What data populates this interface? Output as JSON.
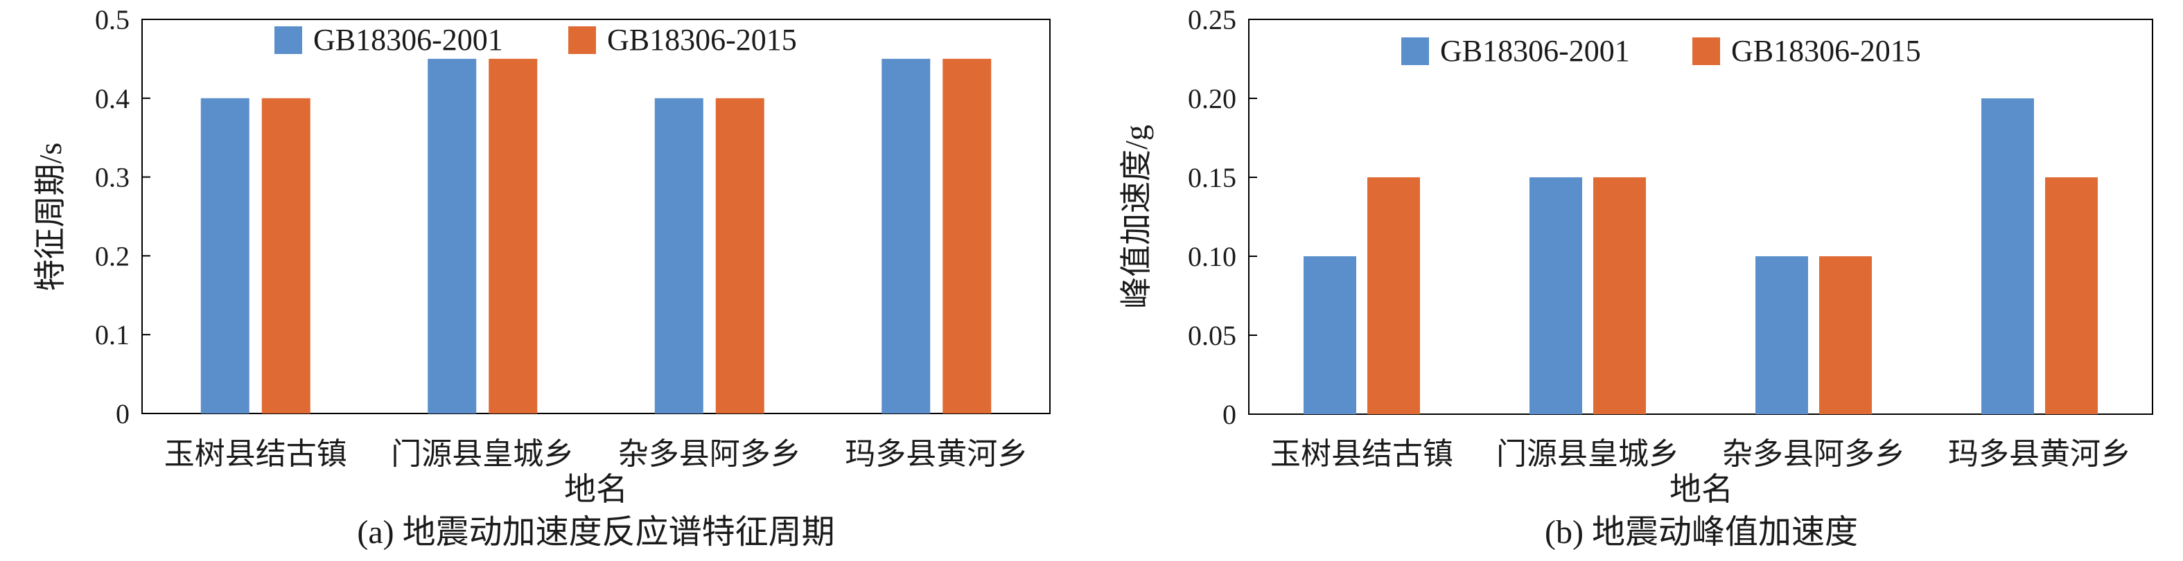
{
  "chart_data": [
    {
      "type": "bar",
      "categories": [
        "玉树县结古镇",
        "门源县皇城乡",
        "杂多县阿多乡",
        "玛多县黄河乡"
      ],
      "series": [
        {
          "name": "GB18306-2001",
          "values": [
            0.4,
            0.45,
            0.4,
            0.45
          ],
          "color": "#5B8FCC"
        },
        {
          "name": "GB18306-2015",
          "values": [
            0.4,
            0.45,
            0.4,
            0.45
          ],
          "color": "#E06A33"
        }
      ],
      "xlabel": "地名",
      "ylabel": "特征周期/s",
      "ylim": [
        0,
        0.5
      ],
      "yticks": [
        "0",
        "0.1",
        "0.2",
        "0.3",
        "0.4",
        "0.5"
      ],
      "caption": "(a) 地震动加速度反应谱特征周期",
      "legend_position": "top-center",
      "grid": false
    },
    {
      "type": "bar",
      "categories": [
        "玉树县结古镇",
        "门源县皇城乡",
        "杂多县阿多乡",
        "玛多县黄河乡"
      ],
      "series": [
        {
          "name": "GB18306-2001",
          "values": [
            0.1,
            0.15,
            0.1,
            0.2
          ],
          "color": "#5B8FCC"
        },
        {
          "name": "GB18306-2015",
          "values": [
            0.15,
            0.15,
            0.1,
            0.15
          ],
          "color": "#E06A33"
        }
      ],
      "xlabel": "地名",
      "ylabel": "峰值加速度/g",
      "ylim": [
        0,
        0.25
      ],
      "yticks": [
        "0",
        "0.05",
        "0.10",
        "0.15",
        "0.20",
        "0.25"
      ],
      "caption": "(b) 地震动峰值加速度",
      "legend_position": "top-center",
      "grid": false
    }
  ]
}
